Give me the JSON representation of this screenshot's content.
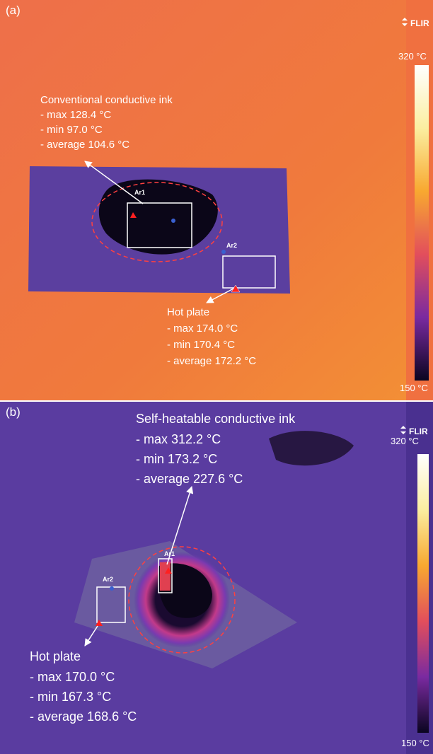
{
  "panels": [
    {
      "label": "(a)",
      "brand": "FLIR",
      "scale_max": "320 °C",
      "scale_min": "150 °C",
      "areas": [
        "Ar1",
        "Ar2"
      ],
      "annotations": [
        {
          "title": "Conventional conductive ink",
          "lines": [
            "- max 128.4 °C",
            "- min 97.0 °C",
            "- average 104.6 °C"
          ]
        },
        {
          "title": "Hot plate",
          "lines": [
            "- max 174.0 °C",
            "- min 170.4 °C",
            "- average 172.2 °C"
          ]
        }
      ]
    },
    {
      "label": "(b)",
      "brand": "FLIR",
      "scale_max": "320 °C",
      "scale_min": "150 °C",
      "areas": [
        "Ar1",
        "Ar2"
      ],
      "annotations": [
        {
          "title": "Self-heatable conductive ink",
          "lines": [
            "- max 312.2 °C",
            "- min 173.2 °C",
            "- average 227.6 °C"
          ]
        },
        {
          "title": "Hot plate",
          "lines": [
            "- max 170.0 °C",
            "- min 167.3 °C",
            "- average 168.6 °C"
          ]
        }
      ]
    }
  ]
}
